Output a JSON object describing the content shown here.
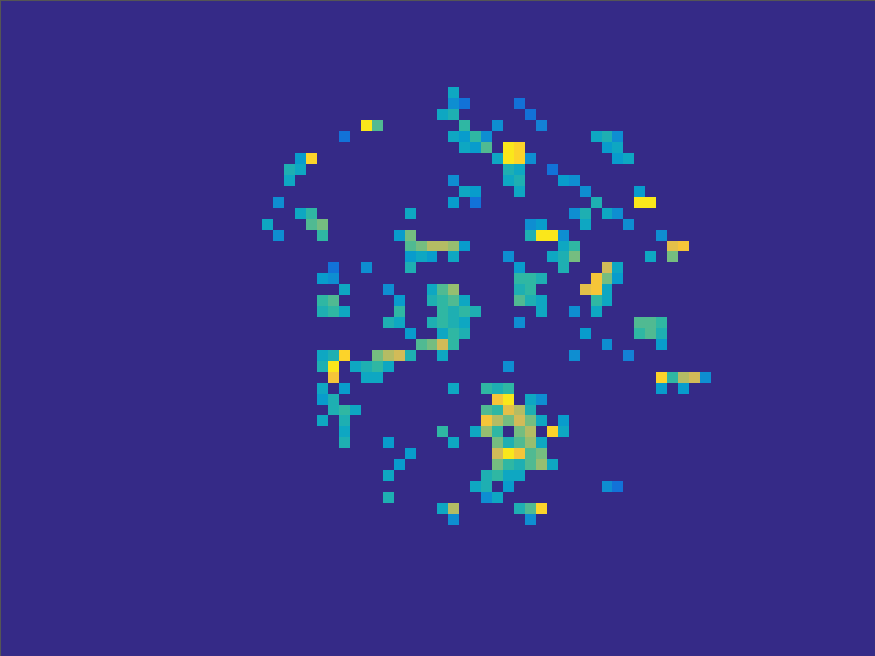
{
  "chart_data": {
    "type": "heatmap",
    "tick_labels": false,
    "shape": [
      60,
      80
    ],
    "clim": [
      0,
      1
    ],
    "cells": [
      [
        8,
        41,
        0.4
      ],
      [
        9,
        41,
        0.3
      ],
      [
        9,
        42,
        0.2
      ],
      [
        9,
        47,
        0.2
      ],
      [
        10,
        40,
        0.4
      ],
      [
        10,
        41,
        0.45
      ],
      [
        10,
        48,
        0.2
      ],
      [
        11,
        33,
        0.95
      ],
      [
        11,
        34,
        0.55
      ],
      [
        11,
        42,
        0.5
      ],
      [
        11,
        45,
        0.3
      ],
      [
        11,
        49,
        0.25
      ],
      [
        12,
        31,
        0.2
      ],
      [
        12,
        41,
        0.4
      ],
      [
        12,
        42,
        0.35
      ],
      [
        12,
        43,
        0.5
      ],
      [
        12,
        44,
        0.3
      ],
      [
        12,
        54,
        0.4
      ],
      [
        12,
        55,
        0.45
      ],
      [
        12,
        56,
        0.3
      ],
      [
        13,
        42,
        0.4
      ],
      [
        13,
        43,
        0.35
      ],
      [
        13,
        44,
        0.55
      ],
      [
        13,
        46,
        0.95
      ],
      [
        13,
        47,
        0.9
      ],
      [
        13,
        55,
        0.35
      ],
      [
        13,
        56,
        0.4
      ],
      [
        14,
        27,
        0.35
      ],
      [
        14,
        28,
        0.9
      ],
      [
        14,
        45,
        0.4
      ],
      [
        14,
        46,
        0.95
      ],
      [
        14,
        47,
        0.9
      ],
      [
        14,
        48,
        0.3
      ],
      [
        14,
        56,
        0.35
      ],
      [
        14,
        57,
        0.4
      ],
      [
        15,
        26,
        0.45
      ],
      [
        15,
        27,
        0.4
      ],
      [
        15,
        46,
        0.45
      ],
      [
        15,
        47,
        0.4
      ],
      [
        15,
        50,
        0.2
      ],
      [
        16,
        26,
        0.4
      ],
      [
        16,
        41,
        0.3
      ],
      [
        16,
        46,
        0.4
      ],
      [
        16,
        47,
        0.45
      ],
      [
        16,
        51,
        0.35
      ],
      [
        16,
        52,
        0.3
      ],
      [
        17,
        42,
        0.4
      ],
      [
        17,
        43,
        0.35
      ],
      [
        17,
        47,
        0.4
      ],
      [
        17,
        53,
        0.3
      ],
      [
        17,
        58,
        0.35
      ],
      [
        18,
        25,
        0.3
      ],
      [
        18,
        41,
        0.35
      ],
      [
        18,
        43,
        0.2
      ],
      [
        18,
        54,
        0.45
      ],
      [
        18,
        58,
        0.95
      ],
      [
        18,
        59,
        0.95
      ],
      [
        19,
        27,
        0.4
      ],
      [
        19,
        28,
        0.5
      ],
      [
        19,
        37,
        0.4
      ],
      [
        19,
        52,
        0.3
      ],
      [
        19,
        53,
        0.45
      ],
      [
        19,
        55,
        0.4
      ],
      [
        19,
        56,
        0.3
      ],
      [
        20,
        24,
        0.4
      ],
      [
        20,
        28,
        0.55
      ],
      [
        20,
        29,
        0.6
      ],
      [
        20,
        48,
        0.3
      ],
      [
        20,
        49,
        0.35
      ],
      [
        20,
        53,
        0.4
      ],
      [
        20,
        57,
        0.3
      ],
      [
        21,
        25,
        0.3
      ],
      [
        21,
        29,
        0.5
      ],
      [
        21,
        36,
        0.35
      ],
      [
        21,
        37,
        0.6
      ],
      [
        21,
        48,
        0.45
      ],
      [
        21,
        49,
        0.95
      ],
      [
        21,
        50,
        0.95
      ],
      [
        21,
        51,
        0.3
      ],
      [
        21,
        60,
        0.3
      ],
      [
        22,
        37,
        0.55
      ],
      [
        22,
        38,
        0.6
      ],
      [
        22,
        39,
        0.7
      ],
      [
        22,
        40,
        0.7
      ],
      [
        22,
        41,
        0.65
      ],
      [
        22,
        42,
        0.35
      ],
      [
        22,
        51,
        0.4
      ],
      [
        22,
        52,
        0.5
      ],
      [
        22,
        61,
        0.8
      ],
      [
        22,
        62,
        0.85
      ],
      [
        23,
        37,
        0.35
      ],
      [
        23,
        38,
        0.4
      ],
      [
        23,
        39,
        0.35
      ],
      [
        23,
        41,
        0.4
      ],
      [
        23,
        46,
        0.3
      ],
      [
        23,
        50,
        0.4
      ],
      [
        23,
        51,
        0.45
      ],
      [
        23,
        52,
        0.6
      ],
      [
        23,
        59,
        0.4
      ],
      [
        23,
        61,
        0.6
      ],
      [
        24,
        30,
        0.2
      ],
      [
        24,
        33,
        0.3
      ],
      [
        24,
        37,
        0.45
      ],
      [
        24,
        47,
        0.35
      ],
      [
        24,
        51,
        0.45
      ],
      [
        24,
        55,
        0.75
      ],
      [
        24,
        56,
        0.4
      ],
      [
        25,
        29,
        0.35
      ],
      [
        25,
        30,
        0.3
      ],
      [
        25,
        47,
        0.5
      ],
      [
        25,
        48,
        0.5
      ],
      [
        25,
        49,
        0.45
      ],
      [
        25,
        54,
        0.85
      ],
      [
        25,
        55,
        0.6
      ],
      [
        25,
        56,
        0.35
      ],
      [
        26,
        31,
        0.4
      ],
      [
        26,
        35,
        0.3
      ],
      [
        26,
        39,
        0.4
      ],
      [
        26,
        40,
        0.55
      ],
      [
        26,
        41,
        0.65
      ],
      [
        26,
        47,
        0.45
      ],
      [
        26,
        48,
        0.5
      ],
      [
        26,
        53,
        0.8
      ],
      [
        26,
        54,
        0.85
      ],
      [
        26,
        55,
        0.4
      ],
      [
        27,
        29,
        0.5
      ],
      [
        27,
        30,
        0.55
      ],
      [
        27,
        36,
        0.35
      ],
      [
        27,
        39,
        0.45
      ],
      [
        27,
        40,
        0.5
      ],
      [
        27,
        41,
        0.55
      ],
      [
        27,
        42,
        0.4
      ],
      [
        27,
        47,
        0.55
      ],
      [
        27,
        48,
        0.45
      ],
      [
        27,
        49,
        0.4
      ],
      [
        27,
        54,
        0.5
      ],
      [
        27,
        55,
        0.4
      ],
      [
        28,
        29,
        0.45
      ],
      [
        28,
        30,
        0.5
      ],
      [
        28,
        31,
        0.4
      ],
      [
        28,
        36,
        0.5
      ],
      [
        28,
        40,
        0.5
      ],
      [
        28,
        41,
        0.45
      ],
      [
        28,
        42,
        0.5
      ],
      [
        28,
        43,
        0.45
      ],
      [
        28,
        49,
        0.4
      ],
      [
        28,
        52,
        0.3
      ],
      [
        28,
        54,
        0.4
      ],
      [
        29,
        35,
        0.45
      ],
      [
        29,
        36,
        0.4
      ],
      [
        29,
        39,
        0.45
      ],
      [
        29,
        40,
        0.5
      ],
      [
        29,
        41,
        0.45
      ],
      [
        29,
        42,
        0.4
      ],
      [
        29,
        47,
        0.3
      ],
      [
        29,
        58,
        0.55
      ],
      [
        29,
        59,
        0.55
      ],
      [
        29,
        60,
        0.5
      ],
      [
        30,
        37,
        0.35
      ],
      [
        30,
        40,
        0.4
      ],
      [
        30,
        41,
        0.5
      ],
      [
        30,
        42,
        0.45
      ],
      [
        30,
        53,
        0.35
      ],
      [
        30,
        58,
        0.5
      ],
      [
        30,
        59,
        0.55
      ],
      [
        30,
        60,
        0.45
      ],
      [
        31,
        38,
        0.55
      ],
      [
        31,
        39,
        0.6
      ],
      [
        31,
        40,
        0.75
      ],
      [
        31,
        41,
        0.5
      ],
      [
        31,
        55,
        0.3
      ],
      [
        31,
        60,
        0.35
      ],
      [
        32,
        29,
        0.4
      ],
      [
        32,
        30,
        0.45
      ],
      [
        32,
        31,
        0.9
      ],
      [
        32,
        34,
        0.6
      ],
      [
        32,
        35,
        0.7
      ],
      [
        32,
        36,
        0.75
      ],
      [
        32,
        37,
        0.45
      ],
      [
        32,
        40,
        0.4
      ],
      [
        32,
        52,
        0.3
      ],
      [
        32,
        57,
        0.25
      ],
      [
        33,
        29,
        0.45
      ],
      [
        33,
        30,
        0.95
      ],
      [
        33,
        32,
        0.4
      ],
      [
        33,
        33,
        0.45
      ],
      [
        33,
        34,
        0.5
      ],
      [
        33,
        35,
        0.4
      ],
      [
        33,
        46,
        0.3
      ],
      [
        34,
        30,
        0.85
      ],
      [
        34,
        33,
        0.4
      ],
      [
        34,
        34,
        0.4
      ],
      [
        34,
        60,
        0.9
      ],
      [
        34,
        61,
        0.5
      ],
      [
        34,
        62,
        0.7
      ],
      [
        34,
        63,
        0.75
      ],
      [
        34,
        64,
        0.3
      ],
      [
        35,
        29,
        0.4
      ],
      [
        35,
        31,
        0.35
      ],
      [
        35,
        41,
        0.4
      ],
      [
        35,
        44,
        0.5
      ],
      [
        35,
        45,
        0.45
      ],
      [
        35,
        46,
        0.5
      ],
      [
        35,
        60,
        0.35
      ],
      [
        35,
        62,
        0.35
      ],
      [
        36,
        29,
        0.35
      ],
      [
        36,
        30,
        0.45
      ],
      [
        36,
        45,
        0.85
      ],
      [
        36,
        46,
        0.95
      ],
      [
        36,
        48,
        0.4
      ],
      [
        36,
        49,
        0.3
      ],
      [
        37,
        30,
        0.45
      ],
      [
        37,
        31,
        0.5
      ],
      [
        37,
        32,
        0.4
      ],
      [
        37,
        44,
        0.55
      ],
      [
        37,
        45,
        0.5
      ],
      [
        37,
        46,
        0.8
      ],
      [
        37,
        47,
        0.7
      ],
      [
        37,
        48,
        0.45
      ],
      [
        38,
        29,
        0.4
      ],
      [
        38,
        31,
        0.45
      ],
      [
        38,
        44,
        0.85
      ],
      [
        38,
        45,
        0.7
      ],
      [
        38,
        46,
        0.6
      ],
      [
        38,
        47,
        0.75
      ],
      [
        38,
        48,
        0.6
      ],
      [
        38,
        49,
        0.4
      ],
      [
        38,
        51,
        0.35
      ],
      [
        39,
        31,
        0.4
      ],
      [
        39,
        40,
        0.5
      ],
      [
        39,
        43,
        0.4
      ],
      [
        39,
        44,
        0.65
      ],
      [
        39,
        45,
        0.5
      ],
      [
        39,
        47,
        0.6
      ],
      [
        39,
        48,
        0.7
      ],
      [
        39,
        50,
        0.9
      ],
      [
        39,
        51,
        0.4
      ],
      [
        40,
        31,
        0.45
      ],
      [
        40,
        35,
        0.35
      ],
      [
        40,
        41,
        0.4
      ],
      [
        40,
        45,
        0.6
      ],
      [
        40,
        46,
        0.45
      ],
      [
        40,
        47,
        0.55
      ],
      [
        40,
        48,
        0.65
      ],
      [
        40,
        49,
        0.4
      ],
      [
        41,
        37,
        0.35
      ],
      [
        41,
        45,
        0.75
      ],
      [
        41,
        46,
        0.95
      ],
      [
        41,
        47,
        0.85
      ],
      [
        41,
        48,
        0.55
      ],
      [
        41,
        49,
        0.6
      ],
      [
        42,
        36,
        0.35
      ],
      [
        42,
        45,
        0.6
      ],
      [
        42,
        46,
        0.5
      ],
      [
        42,
        47,
        0.45
      ],
      [
        42,
        48,
        0.55
      ],
      [
        42,
        49,
        0.65
      ],
      [
        42,
        50,
        0.4
      ],
      [
        43,
        35,
        0.4
      ],
      [
        43,
        44,
        0.45
      ],
      [
        43,
        45,
        0.5
      ],
      [
        43,
        46,
        0.4
      ],
      [
        43,
        47,
        0.4
      ],
      [
        44,
        43,
        0.4
      ],
      [
        44,
        44,
        0.45
      ],
      [
        44,
        46,
        0.35
      ],
      [
        44,
        55,
        0.3
      ],
      [
        44,
        56,
        0.2
      ],
      [
        45,
        35,
        0.45
      ],
      [
        45,
        44,
        0.3
      ],
      [
        45,
        45,
        0.4
      ],
      [
        46,
        40,
        0.4
      ],
      [
        46,
        41,
        0.7
      ],
      [
        46,
        47,
        0.45
      ],
      [
        46,
        48,
        0.55
      ],
      [
        46,
        49,
        0.9
      ],
      [
        47,
        41,
        0.3
      ],
      [
        47,
        48,
        0.3
      ]
    ]
  }
}
